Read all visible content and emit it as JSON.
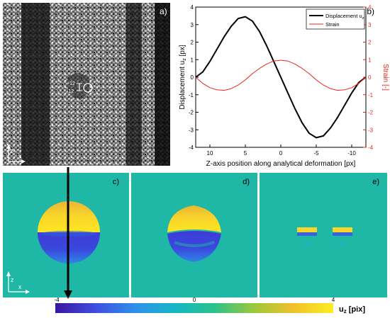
{
  "panels": {
    "a": {
      "label": "a)",
      "axis_z": "z",
      "axis_x": "x",
      "marker_top": "+12",
      "marker_bottom": "-12"
    },
    "b": {
      "label": "b)"
    },
    "c": {
      "label": "c)",
      "axis_z": "z",
      "axis_x": "x"
    },
    "d": {
      "label": "d)"
    },
    "e": {
      "label": "e)"
    }
  },
  "colorbar": {
    "min_label": "-4",
    "mid_label": "0",
    "max_label": "4",
    "unit": "u",
    "unit_sub": "z",
    "unit_rest": " [pix]",
    "colors": [
      "#3a16a0",
      "#3f4de0",
      "#2f8fea",
      "#16b6c6",
      "#2bc28a",
      "#9bc83c",
      "#f2c02a",
      "#fcee22"
    ]
  },
  "colors": {
    "displacement": "#000000",
    "strain": "#e8261f",
    "field_background": "#1fb7a6",
    "indicator_arrow": "#000000"
  },
  "chart_data": {
    "type": "line",
    "xlabel": "Z-axis position along analytical deformation [px]",
    "ylabel_main": "Displacement u",
    "ylabel_sub": "z",
    "ylabel_unit": " [px]",
    "y2label": "Strain [-]",
    "xlim": [
      12,
      -12
    ],
    "x_ticks": [
      "10",
      "5",
      "0",
      "-5",
      "-10"
    ],
    "x_tick_values": [
      10,
      5,
      0,
      -5,
      -10
    ],
    "ylim": [
      -4,
      4
    ],
    "y_ticks": [
      "-4",
      "-3",
      "-2",
      "-1",
      "0",
      "1",
      "2",
      "3",
      "4"
    ],
    "y2lim": [
      -4,
      4
    ],
    "y2_ticks": [
      "-4",
      "-3",
      "-2",
      "-1",
      "0",
      "1",
      "2",
      "3",
      "4"
    ],
    "legend_position": "top-right",
    "grid": false,
    "series": [
      {
        "name": "Displacement u",
        "name_sub": "z",
        "axis": "left",
        "color": "#000000",
        "x": [
          12,
          11,
          10,
          9,
          8,
          7,
          6,
          5,
          4,
          3,
          2,
          1,
          0,
          -1,
          -2,
          -3,
          -4,
          -5,
          -6,
          -7,
          -8,
          -9,
          -10,
          -11,
          -12
        ],
        "y": [
          0.0,
          0.3,
          0.9,
          1.6,
          2.3,
          2.9,
          3.35,
          3.45,
          3.2,
          2.6,
          1.8,
          0.9,
          0.0,
          -0.9,
          -1.8,
          -2.6,
          -3.2,
          -3.45,
          -3.35,
          -2.9,
          -2.3,
          -1.6,
          -0.9,
          -0.3,
          0.0
        ]
      },
      {
        "name": "Strain",
        "axis": "right",
        "color": "#e8261f",
        "x": [
          12,
          11,
          10,
          9,
          8,
          7,
          6,
          5,
          4,
          3,
          2,
          1,
          0,
          -1,
          -2,
          -3,
          -4,
          -5,
          -6,
          -7,
          -8,
          -9,
          -10,
          -11,
          -12
        ],
        "y": [
          0.0,
          -0.35,
          -0.6,
          -0.72,
          -0.75,
          -0.65,
          -0.45,
          -0.15,
          0.2,
          0.5,
          0.75,
          0.92,
          0.97,
          0.92,
          0.75,
          0.5,
          0.2,
          -0.15,
          -0.45,
          -0.65,
          -0.75,
          -0.72,
          -0.6,
          -0.35,
          0.0
        ]
      }
    ]
  }
}
